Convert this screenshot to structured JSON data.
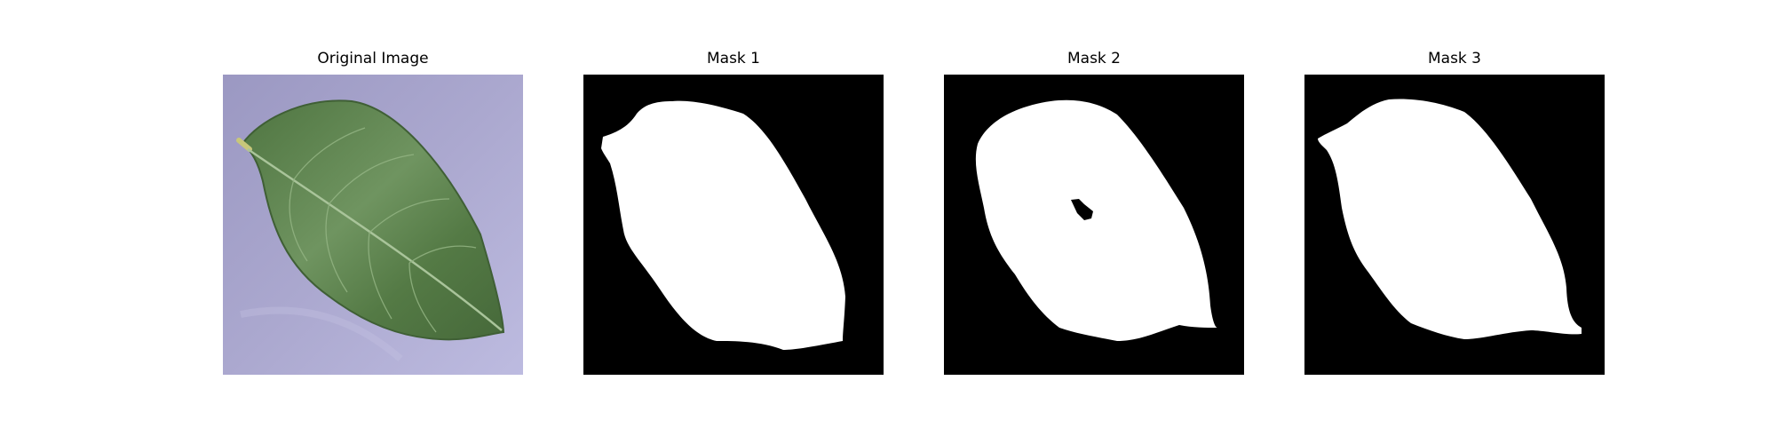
{
  "panels": [
    {
      "title": "Original Image",
      "image": "leaf-photo"
    },
    {
      "title": "Mask 1",
      "image": "binary-mask"
    },
    {
      "title": "Mask 2",
      "image": "binary-mask-with-hole"
    },
    {
      "title": "Mask 3",
      "image": "binary-mask"
    }
  ],
  "colors": {
    "background": "#ffffff",
    "mask_background": "#000000",
    "mask_foreground": "#ffffff",
    "leaf": "#557a45",
    "cloth": "#aba8cf"
  }
}
